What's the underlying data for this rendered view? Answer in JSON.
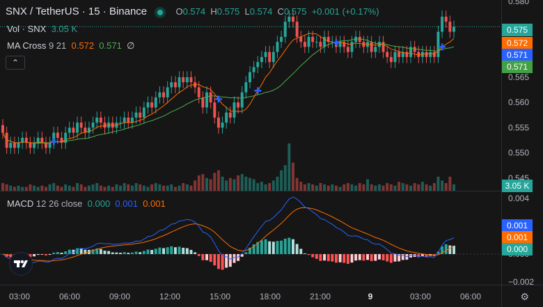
{
  "header": {
    "symbol": "SNX / TetherUS · 15 · Binance",
    "o_label": "O",
    "o": "0.574",
    "h_label": "H",
    "h": "0.575",
    "l_label": "L",
    "l": "0.574",
    "c_label": "C",
    "c": "0.575",
    "change": "+0.001 (+0.17%)"
  },
  "vol": {
    "label": "Vol · SNX",
    "value": "3.05 K"
  },
  "ma_cross": {
    "label": "MA Cross",
    "params": "9 21",
    "fast": "0.572",
    "slow": "0.571",
    "extra": "∅"
  },
  "macd": {
    "label": "MACD",
    "params": "12 26 close",
    "histogram": "0.000",
    "macd": "0.001",
    "signal": "0.001"
  },
  "price_tags": {
    "last": "0.575",
    "ma_fast": "0.572",
    "macd_blue": "0.571",
    "ma_slow": "0.571",
    "volume": "3.05 K",
    "macd_line": "0.001",
    "signal_line": "0.001",
    "hist": "0.000"
  },
  "colors": {
    "up": "#26a69a",
    "down": "#ef5350",
    "ma_fast": "#ff6d00",
    "ma_slow": "#4caf50",
    "macd": "#2962ff",
    "signal": "#ff6d00"
  },
  "chart_data": [
    {
      "type": "candlestick",
      "title": "SNX / TetherUS · 15 · Binance",
      "x_ticks": [
        "03:00",
        "06:00",
        "09:00",
        "12:00",
        "15:00",
        "18:00",
        "21:00",
        "9",
        "03:00",
        "06:00"
      ],
      "y_ticks": [
        0.545,
        0.55,
        0.555,
        0.56,
        0.565,
        0.58
      ],
      "ylim": [
        0.5425,
        0.5803
      ],
      "close": [
        0.554,
        0.551,
        0.552,
        0.551,
        0.552,
        0.553,
        0.552,
        0.551,
        0.552,
        0.553,
        0.552,
        0.551,
        0.552,
        0.554,
        0.553,
        0.552,
        0.554,
        0.555,
        0.554,
        0.556,
        0.555,
        0.554,
        0.555,
        0.556,
        0.557,
        0.556,
        0.555,
        0.556,
        0.555,
        0.556,
        0.556,
        0.557,
        0.556,
        0.557,
        0.558,
        0.557,
        0.559,
        0.56,
        0.559,
        0.561,
        0.562,
        0.561,
        0.563,
        0.564,
        0.563,
        0.565,
        0.564,
        0.565,
        0.564,
        0.563,
        0.561,
        0.559,
        0.562,
        0.56,
        0.557,
        0.555,
        0.556,
        0.558,
        0.557,
        0.56,
        0.559,
        0.562,
        0.564,
        0.566,
        0.567,
        0.568,
        0.569,
        0.57,
        0.568,
        0.57,
        0.572,
        0.573,
        0.576,
        0.577,
        0.576,
        0.573,
        0.572,
        0.571,
        0.573,
        0.572,
        0.572,
        0.571,
        0.573,
        0.572,
        0.572,
        0.571,
        0.572,
        0.571,
        0.57,
        0.572,
        0.573,
        0.572,
        0.571,
        0.572,
        0.57,
        0.571,
        0.572,
        0.57,
        0.569,
        0.568,
        0.57,
        0.569,
        0.57,
        0.569,
        0.571,
        0.57,
        0.569,
        0.57,
        0.569,
        0.57,
        0.569,
        0.574,
        0.577,
        0.576,
        0.574,
        0.575
      ],
      "volume": [
        0.6,
        0.5,
        0.4,
        0.3,
        0.4,
        0.3,
        0.3,
        0.5,
        0.4,
        0.3,
        0.4,
        0.3,
        0.5,
        0.6,
        0.4,
        0.3,
        0.5,
        0.4,
        0.3,
        0.6,
        0.5,
        0.3,
        0.4,
        0.5,
        0.6,
        0.4,
        0.3,
        0.4,
        0.3,
        0.5,
        0.4,
        0.6,
        0.5,
        0.4,
        0.6,
        0.5,
        0.4,
        0.3,
        0.5,
        0.6,
        0.5,
        0.4,
        0.4,
        0.5,
        0.3,
        0.4,
        0.6,
        0.5,
        0.4,
        0.8,
        1.2,
        1.3,
        1.0,
        0.9,
        1.4,
        1.6,
        1.1,
        0.8,
        1.0,
        0.9,
        1.2,
        1.3,
        1.1,
        1.0,
        0.9,
        0.6,
        0.7,
        0.5,
        0.6,
        0.8,
        1.1,
        1.6,
        2.0,
        3.7,
        2.2,
        1.0,
        0.7,
        0.5,
        0.6,
        0.5,
        0.4,
        0.6,
        0.5,
        0.4,
        0.5,
        0.4,
        0.3,
        0.5,
        0.6,
        0.5,
        0.4,
        0.6,
        0.5,
        0.9,
        0.5,
        0.4,
        0.5,
        0.4,
        0.6,
        0.5,
        0.4,
        0.7,
        0.6,
        0.5,
        0.4,
        0.6,
        0.5,
        0.7,
        0.5,
        0.4,
        0.6,
        1.1,
        0.8,
        0.6,
        1.1,
        0.5
      ]
    },
    {
      "type": "line",
      "title": "MACD",
      "y_ticks": [
        0.004,
        0.002,
        0.0,
        -0.002
      ],
      "ylim": [
        -0.0022,
        0.0045
      ]
    }
  ]
}
